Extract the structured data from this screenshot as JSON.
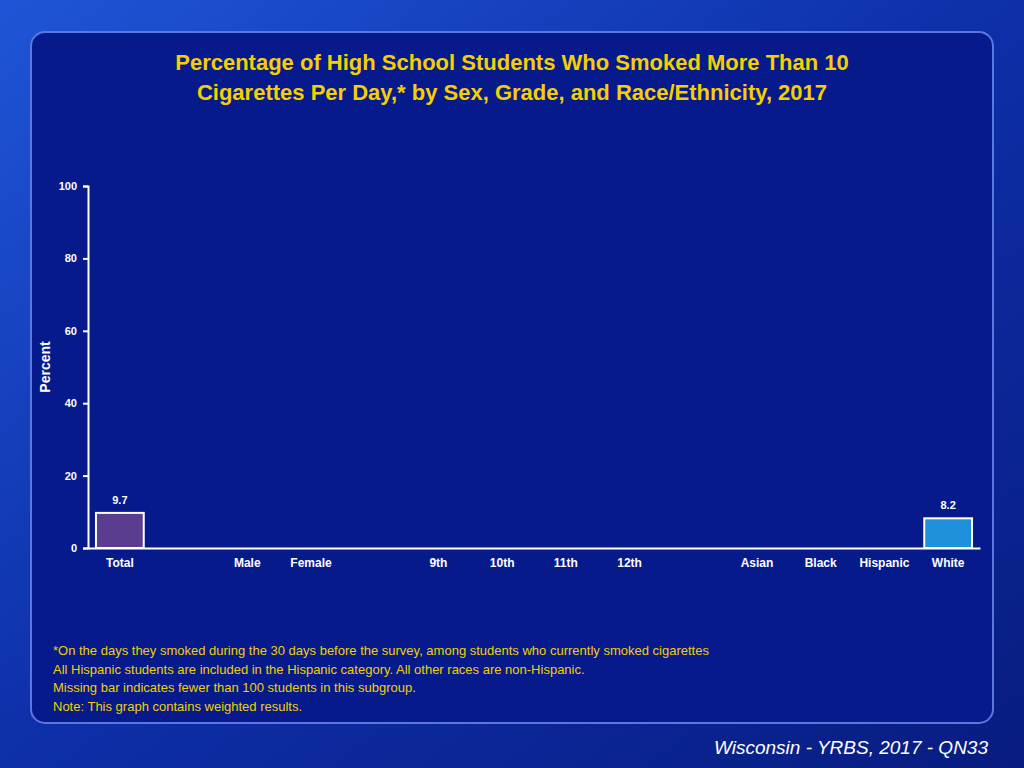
{
  "chart_data": {
    "type": "bar",
    "title": "Percentage of High School Students Who Smoked More Than 10\nCigarettes Per Day,* by Sex, Grade, and Race/Ethnicity, 2017",
    "y_label": "Percent",
    "categories": [
      "Total",
      null,
      "Male",
      "Female",
      null,
      "9th",
      "10th",
      "11th",
      "12th",
      null,
      "Asian",
      "Black",
      "Hispanic",
      "White"
    ],
    "values": [
      9.7,
      null,
      null,
      null,
      null,
      null,
      null,
      null,
      null,
      null,
      null,
      null,
      null,
      8.2
    ],
    "colors": [
      "#5b3d8f",
      null,
      null,
      null,
      null,
      null,
      null,
      null,
      null,
      null,
      null,
      null,
      null,
      "#1e90dc"
    ],
    "ylim": [
      0,
      100
    ],
    "yticks": [
      0,
      20,
      40,
      60,
      80,
      100
    ],
    "grid": false,
    "data_labels": true,
    "notes": [
      "*On the days they smoked during the 30 days before the survey, among students who currently smoked cigarettes",
      "All Hispanic students are included in the Hispanic category.  All other races are non-Hispanic.",
      "Missing bar indicates fewer than 100 students in this subgroup.",
      "Note: This graph contains weighted results."
    ],
    "source": "Wisconsin - YRBS, 2017 - QN33"
  }
}
